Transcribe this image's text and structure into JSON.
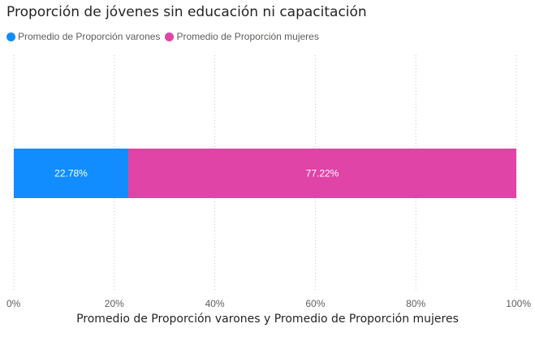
{
  "chart_data": {
    "type": "bar",
    "orientation": "horizontal",
    "stacked": "100%",
    "title": "Proporción de jóvenes sin educación ni capacitación",
    "xlabel": "Promedio de Proporción varones y Promedio de Proporción mujeres",
    "ylabel": "",
    "xlim": [
      0,
      100
    ],
    "ticks": [
      "0%",
      "20%",
      "40%",
      "60%",
      "80%",
      "100%"
    ],
    "tick_values": [
      0,
      20,
      40,
      60,
      80,
      100
    ],
    "grid": true,
    "legend_position": "top-left",
    "categories": [
      ""
    ],
    "series": [
      {
        "name": "Promedio de Proporción varones",
        "values": [
          22.78
        ],
        "label": "22.78%",
        "color": "#118DFF"
      },
      {
        "name": "Promedio de Proporción mujeres",
        "values": [
          77.22
        ],
        "label": "77.22%",
        "color": "#E044A7"
      }
    ]
  }
}
